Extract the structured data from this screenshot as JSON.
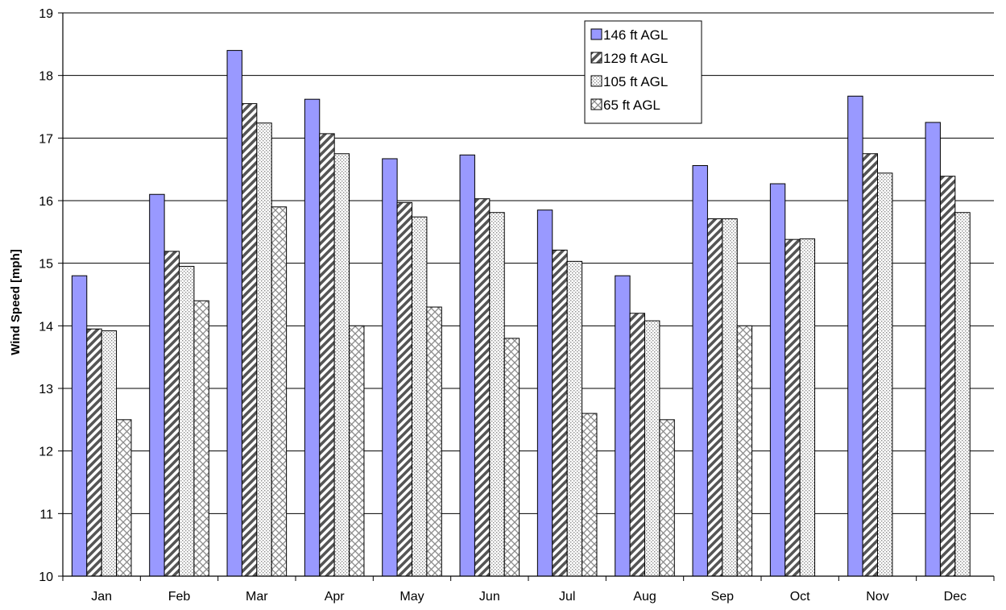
{
  "chart_data": {
    "type": "bar",
    "title": "",
    "xlabel": "",
    "ylabel": "Wind Speed [mph]",
    "ylim": [
      10,
      19
    ],
    "yticks": [
      10,
      11,
      12,
      13,
      14,
      15,
      16,
      17,
      18,
      19
    ],
    "grid": true,
    "legend_position": "top-center",
    "categories": [
      "Jan",
      "Feb",
      "Mar",
      "Apr",
      "May",
      "Jun",
      "Jul",
      "Aug",
      "Sep",
      "Oct",
      "Nov",
      "Dec"
    ],
    "series": [
      {
        "name": "146 ft AGL",
        "color": "#9999ff",
        "pattern": "solid",
        "values": [
          14.8,
          16.1,
          18.4,
          17.62,
          16.67,
          16.73,
          15.85,
          14.8,
          16.56,
          16.27,
          17.67,
          17.25
        ]
      },
      {
        "name": "129 ft AGL",
        "color": "#555555",
        "pattern": "diagonal-stripes",
        "values": [
          13.95,
          15.19,
          17.55,
          17.07,
          15.97,
          16.03,
          15.21,
          14.2,
          15.71,
          15.38,
          16.75,
          16.39
        ]
      },
      {
        "name": "105 ft AGL",
        "color": "#999999",
        "pattern": "dots",
        "values": [
          13.92,
          14.95,
          17.24,
          16.75,
          15.74,
          15.81,
          15.03,
          14.08,
          15.71,
          15.39,
          16.44,
          15.81
        ]
      },
      {
        "name": "65 ft AGL",
        "color": "#999999",
        "pattern": "crosshatch",
        "values": [
          12.5,
          14.4,
          15.9,
          14.0,
          14.3,
          13.8,
          12.6,
          12.5,
          14.0,
          null,
          null,
          null
        ]
      }
    ]
  }
}
